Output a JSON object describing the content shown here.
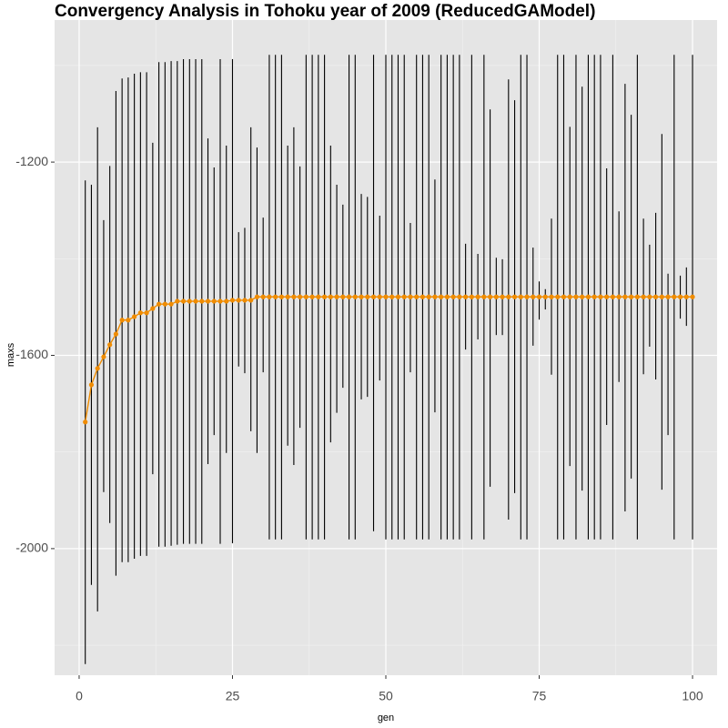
{
  "chart_data": {
    "type": "errorbar-line",
    "title": "Convergency Analysis in  Tohoku year of 2009 (ReducedGAModel)",
    "x_label": "gen",
    "y_label": "maxs",
    "xlim": [
      -4,
      104
    ],
    "ylim": [
      -2262,
      -906
    ],
    "xticks": [
      0,
      25,
      50,
      75,
      100
    ],
    "yticks": [
      -2000,
      -1600,
      -1200
    ],
    "grid": true,
    "color": "#f08c00",
    "bar_color": "#000000",
    "x": [
      1,
      2,
      3,
      4,
      5,
      6,
      7,
      8,
      9,
      10,
      11,
      12,
      13,
      14,
      15,
      16,
      17,
      18,
      19,
      20,
      21,
      22,
      23,
      24,
      25,
      26,
      27,
      28,
      29,
      30,
      31,
      32,
      33,
      34,
      35,
      36,
      37,
      38,
      39,
      40,
      41,
      42,
      43,
      44,
      45,
      46,
      47,
      48,
      49,
      50,
      51,
      52,
      53,
      54,
      55,
      56,
      57,
      58,
      59,
      60,
      61,
      62,
      63,
      64,
      65,
      66,
      67,
      68,
      69,
      70,
      71,
      72,
      73,
      74,
      75,
      76,
      77,
      78,
      79,
      80,
      81,
      82,
      83,
      84,
      85,
      86,
      87,
      88,
      89,
      90,
      91,
      92,
      93,
      94,
      95,
      96,
      97,
      98,
      99,
      100
    ],
    "values": [
      -1738,
      -1661,
      -1627,
      -1603,
      -1578,
      -1556,
      -1527,
      -1527,
      -1520,
      -1512,
      -1512,
      -1503,
      -1494,
      -1494,
      -1494,
      -1488,
      -1488,
      -1488,
      -1488,
      -1488,
      -1488,
      -1488,
      -1488,
      -1488,
      -1486,
      -1486,
      -1486,
      -1486,
      -1479,
      -1479,
      -1479,
      -1479,
      -1479,
      -1479,
      -1479,
      -1479,
      -1479,
      -1479,
      -1479,
      -1479,
      -1479,
      -1479,
      -1479,
      -1479,
      -1479,
      -1479,
      -1479,
      -1479,
      -1479,
      -1479,
      -1479,
      -1479,
      -1479,
      -1479,
      -1479,
      -1479,
      -1479,
      -1479,
      -1479,
      -1479,
      -1479,
      -1479,
      -1479,
      -1479,
      -1479,
      -1479,
      -1479,
      -1479,
      -1479,
      -1479,
      -1479,
      -1479,
      -1479,
      -1479,
      -1479,
      -1479,
      -1479,
      -1479,
      -1479,
      -1479,
      -1479,
      -1479,
      -1479,
      -1479,
      -1479,
      -1479,
      -1479,
      -1479,
      -1479,
      -1479,
      -1479,
      -1479,
      -1479,
      -1479,
      -1479,
      -1479,
      -1479,
      -1479,
      -1479,
      -1479
    ],
    "upper": [
      -1238,
      -1247,
      -1128,
      -1320,
      -1208,
      -1053,
      -1027,
      -1025,
      -1017,
      -1014,
      -1014,
      -1160,
      -993,
      -993,
      -991,
      -991,
      -987,
      -987,
      -987,
      -987,
      -1151,
      -1211,
      -987,
      -1166,
      -987,
      -1345,
      -1336,
      -1128,
      -1170,
      -1315,
      -978,
      -978,
      -978,
      -1166,
      -1128,
      -1209,
      -978,
      -978,
      -978,
      -978,
      -1166,
      -1247,
      -1288,
      -978,
      -978,
      -1266,
      -1272,
      -978,
      -1311,
      -978,
      -978,
      -978,
      -978,
      -1326,
      -978,
      -978,
      -978,
      -1236,
      -978,
      -978,
      -978,
      -978,
      -1369,
      -978,
      -1390,
      -978,
      -1091,
      -1398,
      -1401,
      -1029,
      -1072,
      -978,
      -978,
      -1377,
      -1447,
      -1463,
      -1317,
      -978,
      -978,
      -1127,
      -978,
      -1044,
      -978,
      -978,
      -978,
      -1213,
      -978,
      -1302,
      -1038,
      -1102,
      -978,
      -1317,
      -1371,
      -1305,
      -1142,
      -1431,
      -978,
      -1435,
      -1418,
      -978
    ],
    "lower": [
      -2239,
      -2075,
      -2130,
      -1883,
      -1947,
      -2056,
      -2028,
      -2028,
      -2021,
      -2015,
      -2015,
      -1846,
      -1996,
      -1996,
      -1994,
      -1992,
      -1990,
      -1990,
      -1990,
      -1990,
      -1825,
      -1765,
      -1990,
      -1802,
      -1989,
      -1623,
      -1637,
      -1757,
      -1802,
      -1635,
      -1981,
      -1981,
      -1981,
      -1787,
      -1827,
      -1750,
      -1981,
      -1981,
      -1981,
      -1981,
      -1780,
      -1719,
      -1667,
      -1981,
      -1981,
      -1691,
      -1686,
      -1964,
      -1652,
      -1981,
      -1981,
      -1981,
      -1981,
      -1635,
      -1981,
      -1981,
      -1981,
      -1718,
      -1981,
      -1981,
      -1981,
      -1981,
      -1588,
      -1981,
      -1567,
      -1981,
      -1872,
      -1558,
      -1558,
      -1940,
      -1885,
      -1981,
      -1981,
      -1580,
      -1526,
      -1505,
      -1640,
      -1981,
      -1981,
      -1829,
      -1981,
      -1880,
      -1981,
      -1981,
      -1981,
      -1744,
      -1981,
      -1655,
      -1923,
      -1855,
      -1981,
      -1639,
      -1582,
      -1650,
      -1878,
      -1765,
      -1981,
      -1524,
      -1539,
      -1981
    ]
  }
}
